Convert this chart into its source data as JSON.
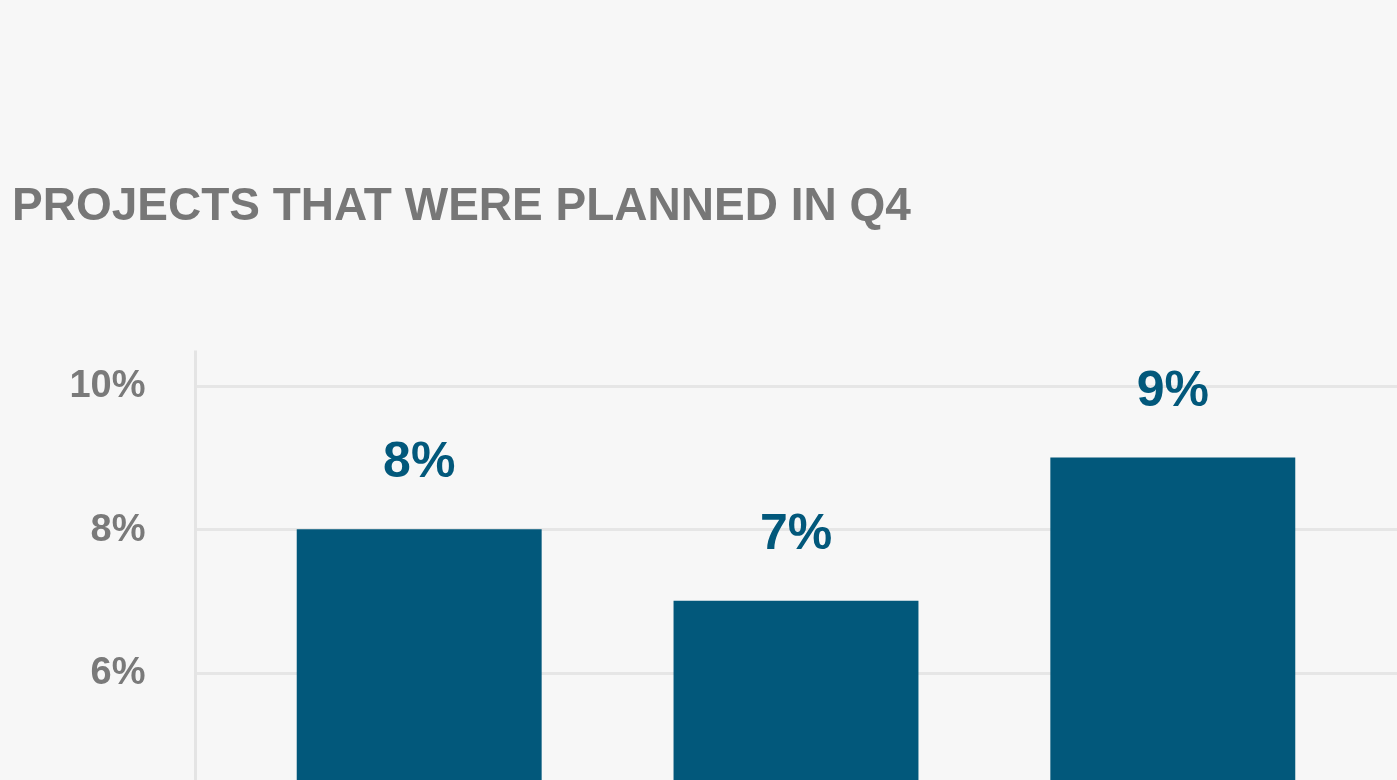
{
  "chart_data": {
    "type": "bar",
    "title": "PROJECTS THAT WERE PLANNED IN Q4",
    "categories": [
      null,
      null,
      null
    ],
    "values": [
      8,
      7,
      9
    ],
    "value_labels": [
      "8%",
      "7%",
      "9%"
    ],
    "color": "#02587b",
    "ylim": [
      4.5,
      10.5
    ],
    "yticks": [
      {
        "value": 6,
        "label": "6%"
      },
      {
        "value": 8,
        "label": "8%"
      },
      {
        "value": 10,
        "label": "10%"
      }
    ],
    "grid": "y",
    "tick_labels": "y"
  }
}
